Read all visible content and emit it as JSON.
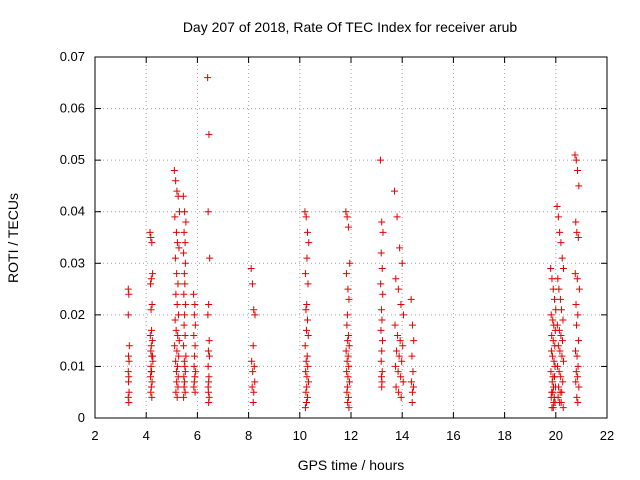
{
  "chart_data": {
    "type": "scatter",
    "title": "Day 207 of 2018, Rate Of TEC Index for receiver arub",
    "xlabel": "GPS time / hours",
    "ylabel": "ROTI / TECUs",
    "xlim": [
      2,
      22
    ],
    "ylim": [
      0,
      0.07
    ],
    "xticks": [
      2,
      4,
      6,
      8,
      10,
      12,
      14,
      16,
      18,
      20,
      22
    ],
    "yticks": [
      0,
      0.01,
      0.02,
      0.03,
      0.04,
      0.05,
      0.06,
      0.07
    ],
    "xtick_labels": [
      "2",
      "4",
      "6",
      "8",
      "10",
      "12",
      "14",
      "16",
      "18",
      "20",
      "22"
    ],
    "ytick_labels": [
      "0",
      "0.01",
      "0.02",
      "0.03",
      "0.04",
      "0.05",
      "0.06",
      "0.07"
    ],
    "grid": true,
    "marker": "plus",
    "color": "#e00000",
    "series": [
      {
        "x": [
          3.3,
          3.32,
          3.3,
          3.34,
          3.31,
          3.33,
          3.3,
          3.32,
          3.31,
          3.33,
          3.3,
          3.32,
          4.15,
          4.18,
          4.22,
          4.25,
          4.2,
          4.17,
          4.23,
          4.19,
          4.21,
          4.16,
          4.24,
          4.2,
          4.18,
          4.22,
          4.26,
          4.19,
          4.21,
          4.17,
          4.23,
          4.2,
          4.18,
          4.22,
          4.25,
          4.19,
          5.1,
          5.15,
          5.2,
          5.25,
          5.3,
          5.12,
          5.18,
          5.22,
          5.28,
          5.14,
          5.19,
          5.24,
          5.16,
          5.21,
          5.26,
          5.13,
          5.17,
          5.23,
          5.29,
          5.11,
          5.2,
          5.27,
          5.15,
          5.22,
          5.18,
          5.25,
          5.19,
          5.24,
          5.16,
          5.21,
          5.45,
          5.5,
          5.55,
          5.48,
          5.52,
          5.46,
          5.53,
          5.49,
          5.51,
          5.47,
          5.54,
          5.5,
          5.48,
          5.52,
          5.46,
          5.55,
          5.49,
          5.51,
          5.53,
          5.47,
          5.5,
          5.48,
          5.52,
          5.46,
          5.85,
          5.9,
          5.88,
          5.92,
          5.86,
          5.91,
          5.89,
          5.87,
          5.93,
          5.9,
          5.88,
          5.86,
          5.91,
          6.4,
          6.45,
          6.42,
          6.48,
          6.44,
          6.41,
          6.46,
          6.43,
          6.47,
          6.42,
          6.45,
          6.44,
          6.43,
          6.46,
          6.44,
          6.42,
          8.1,
          8.15,
          8.2,
          8.25,
          8.18,
          8.12,
          8.22,
          8.16,
          8.24,
          8.14,
          8.2,
          8.18,
          10.2,
          10.25,
          10.3,
          10.35,
          10.28,
          10.22,
          10.32,
          10.27,
          10.24,
          10.3,
          10.26,
          10.33,
          10.21,
          10.29,
          10.25,
          10.31,
          10.23,
          10.28,
          10.34,
          10.27,
          10.24,
          10.3,
          10.26,
          10.22,
          11.8,
          11.85,
          11.9,
          11.95,
          11.82,
          11.88,
          11.92,
          11.86,
          11.84,
          11.9,
          11.87,
          11.93,
          11.81,
          11.89,
          11.85,
          11.91,
          11.83,
          11.88,
          11.94,
          11.86,
          11.84,
          11.9,
          11.87,
          11.92,
          13.15,
          13.2,
          13.25,
          13.18,
          13.22,
          13.16,
          13.24,
          13.19,
          13.21,
          13.17,
          13.23,
          13.2,
          13.18,
          13.22,
          13.19,
          13.21,
          13.2,
          13.7,
          13.8,
          13.9,
          14.0,
          13.75,
          13.85,
          13.95,
          14.05,
          13.72,
          13.82,
          13.92,
          14.02,
          13.78,
          13.88,
          13.98,
          13.74,
          13.84,
          13.94,
          14.04,
          13.76,
          13.86,
          13.96,
          14.35,
          14.4,
          14.45,
          14.38,
          14.42,
          14.36,
          14.44,
          14.4,
          14.39,
          19.8,
          19.85,
          19.9,
          19.95,
          20.0,
          19.82,
          19.88,
          19.92,
          19.98,
          19.84,
          19.9,
          19.96,
          19.83,
          19.87,
          19.93,
          19.97,
          19.81,
          19.89,
          19.95,
          19.86,
          19.91,
          19.99,
          19.84,
          19.88,
          19.94,
          19.82,
          19.92,
          19.97,
          19.85,
          19.9,
          20.05,
          20.1,
          20.15,
          20.2,
          20.25,
          20.3,
          20.08,
          20.12,
          20.18,
          20.22,
          20.28,
          20.06,
          20.14,
          20.2,
          20.26,
          20.1,
          20.16,
          20.24,
          20.3,
          20.07,
          20.13,
          20.19,
          20.27,
          20.11,
          20.17,
          20.23,
          20.09,
          20.15,
          20.21,
          20.29,
          20.75,
          20.8,
          20.85,
          20.9,
          20.78,
          20.82,
          20.88,
          20.76,
          20.84,
          20.92,
          20.79,
          20.86,
          20.81,
          20.89,
          20.77,
          20.83,
          20.87,
          20.8,
          20.85,
          20.78,
          20.9,
          20.82,
          20.86
        ],
        "y": [
          0.025,
          0.024,
          0.02,
          0.014,
          0.012,
          0.011,
          0.009,
          0.008,
          0.007,
          0.005,
          0.004,
          0.003,
          0.036,
          0.035,
          0.034,
          0.028,
          0.027,
          0.026,
          0.022,
          0.021,
          0.017,
          0.016,
          0.015,
          0.014,
          0.013,
          0.012,
          0.011,
          0.01,
          0.009,
          0.008,
          0.007,
          0.006,
          0.005,
          0.004,
          0.012,
          0.009,
          0.048,
          0.046,
          0.044,
          0.043,
          0.04,
          0.039,
          0.036,
          0.034,
          0.033,
          0.031,
          0.028,
          0.026,
          0.024,
          0.022,
          0.02,
          0.019,
          0.017,
          0.016,
          0.015,
          0.014,
          0.013,
          0.012,
          0.011,
          0.01,
          0.009,
          0.008,
          0.007,
          0.006,
          0.005,
          0.004,
          0.043,
          0.04,
          0.038,
          0.036,
          0.034,
          0.032,
          0.03,
          0.028,
          0.026,
          0.024,
          0.022,
          0.02,
          0.018,
          0.016,
          0.014,
          0.012,
          0.011,
          0.01,
          0.009,
          0.008,
          0.007,
          0.006,
          0.005,
          0.004,
          0.024,
          0.022,
          0.02,
          0.018,
          0.016,
          0.014,
          0.012,
          0.01,
          0.009,
          0.008,
          0.007,
          0.006,
          0.005,
          0.066,
          0.055,
          0.04,
          0.031,
          0.022,
          0.02,
          0.015,
          0.013,
          0.012,
          0.01,
          0.008,
          0.007,
          0.005,
          0.004,
          0.003,
          0.006,
          0.029,
          0.026,
          0.021,
          0.02,
          0.014,
          0.011,
          0.01,
          0.009,
          0.007,
          0.006,
          0.005,
          0.003,
          0.04,
          0.039,
          0.036,
          0.034,
          0.031,
          0.028,
          0.026,
          0.022,
          0.021,
          0.019,
          0.017,
          0.016,
          0.014,
          0.012,
          0.011,
          0.01,
          0.009,
          0.008,
          0.007,
          0.006,
          0.005,
          0.004,
          0.003,
          0.002,
          0.04,
          0.039,
          0.037,
          0.03,
          0.028,
          0.025,
          0.023,
          0.02,
          0.018,
          0.016,
          0.015,
          0.014,
          0.013,
          0.012,
          0.011,
          0.01,
          0.009,
          0.008,
          0.007,
          0.006,
          0.005,
          0.004,
          0.003,
          0.002,
          0.05,
          0.038,
          0.036,
          0.032,
          0.029,
          0.026,
          0.024,
          0.021,
          0.019,
          0.017,
          0.015,
          0.013,
          0.011,
          0.009,
          0.008,
          0.007,
          0.006,
          0.044,
          0.039,
          0.033,
          0.03,
          0.027,
          0.025,
          0.022,
          0.02,
          0.018,
          0.016,
          0.015,
          0.014,
          0.013,
          0.012,
          0.011,
          0.01,
          0.009,
          0.008,
          0.007,
          0.006,
          0.005,
          0.004,
          0.023,
          0.018,
          0.015,
          0.012,
          0.009,
          0.007,
          0.006,
          0.005,
          0.003,
          0.029,
          0.027,
          0.025,
          0.023,
          0.021,
          0.02,
          0.019,
          0.018,
          0.017,
          0.016,
          0.015,
          0.014,
          0.013,
          0.012,
          0.011,
          0.01,
          0.009,
          0.008,
          0.008,
          0.007,
          0.006,
          0.006,
          0.005,
          0.005,
          0.004,
          0.004,
          0.003,
          0.003,
          0.002,
          0.002,
          0.041,
          0.039,
          0.036,
          0.034,
          0.031,
          0.029,
          0.027,
          0.025,
          0.023,
          0.021,
          0.019,
          0.018,
          0.017,
          0.016,
          0.015,
          0.014,
          0.013,
          0.012,
          0.011,
          0.01,
          0.009,
          0.008,
          0.007,
          0.006,
          0.005,
          0.005,
          0.004,
          0.003,
          0.003,
          0.002,
          0.051,
          0.05,
          0.048,
          0.045,
          0.038,
          0.036,
          0.035,
          0.028,
          0.027,
          0.025,
          0.022,
          0.02,
          0.018,
          0.015,
          0.013,
          0.012,
          0.01,
          0.009,
          0.008,
          0.007,
          0.006,
          0.004,
          0.003
        ]
      }
    ]
  }
}
